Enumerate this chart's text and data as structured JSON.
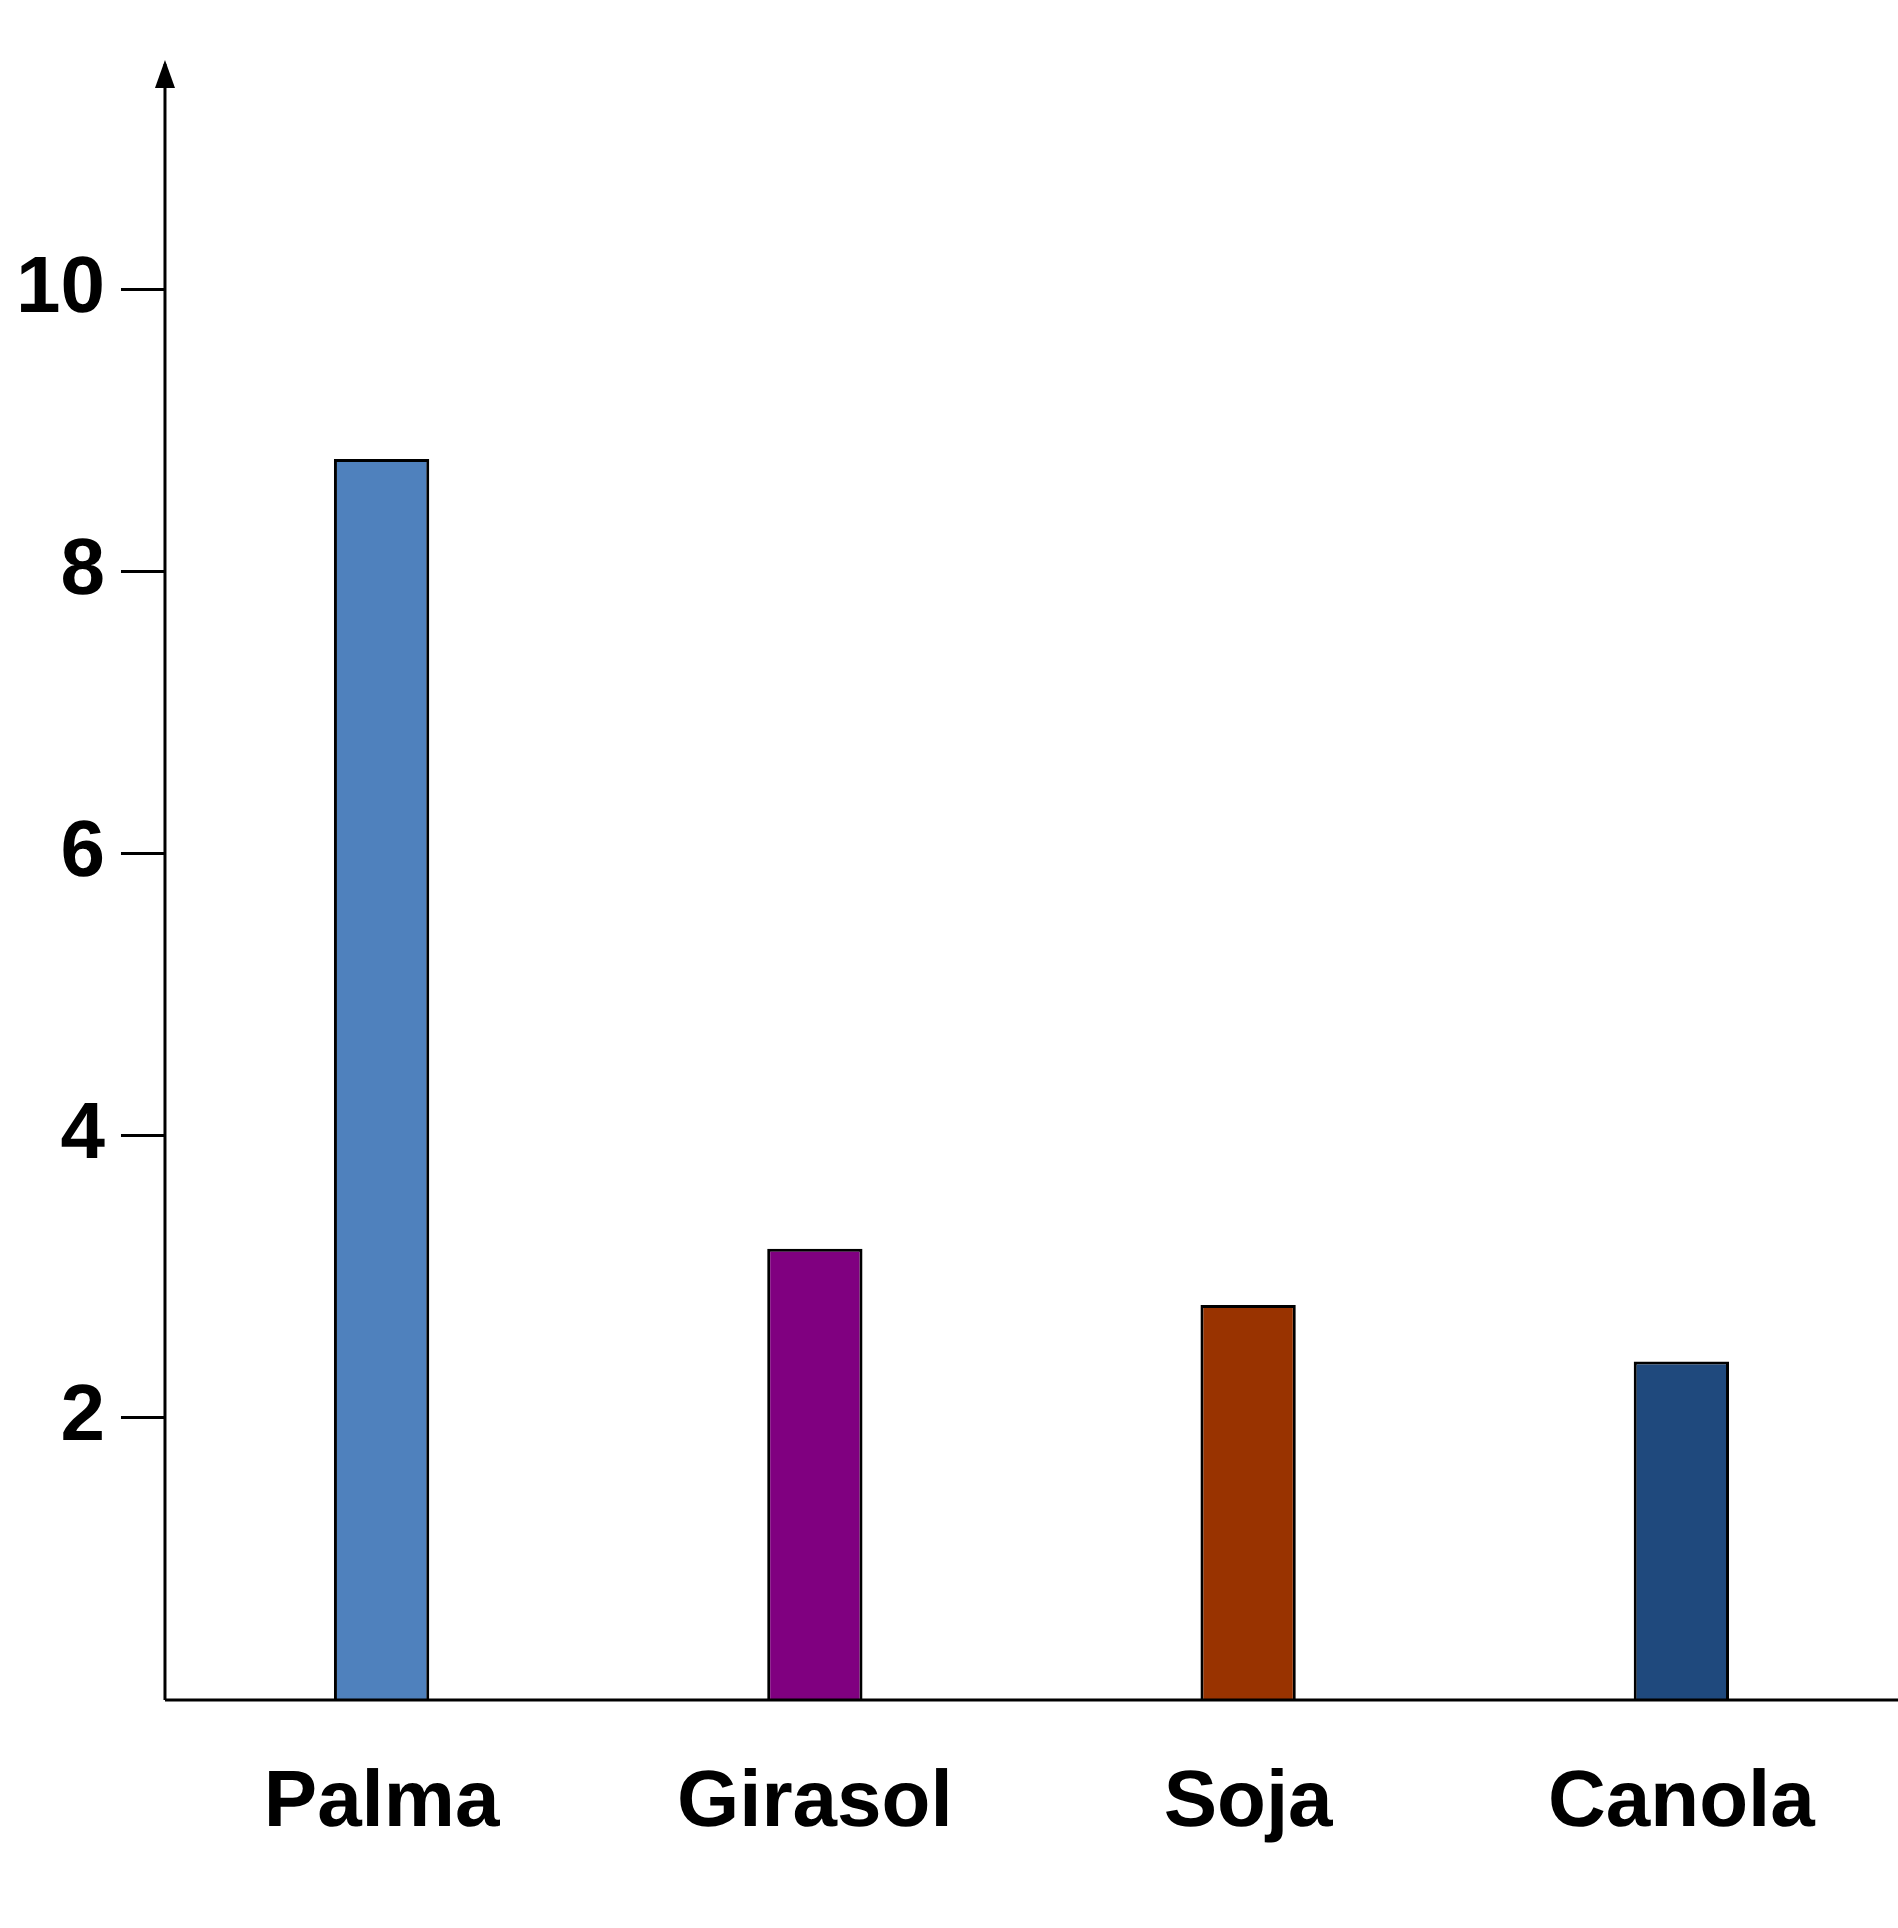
{
  "chart_data": {
    "type": "bar",
    "categories": [
      "Palma",
      "Girasol",
      "Soja",
      "Canola"
    ],
    "values": [
      8.8,
      3.2,
      2.8,
      2.4
    ],
    "colors": [
      "#4f81bd",
      "#800080",
      "#993300",
      "#1f497d"
    ],
    "ylim": [
      0,
      11.6
    ],
    "yticks": [
      2,
      4,
      6,
      8,
      10
    ],
    "grid": false,
    "legend": false
  }
}
